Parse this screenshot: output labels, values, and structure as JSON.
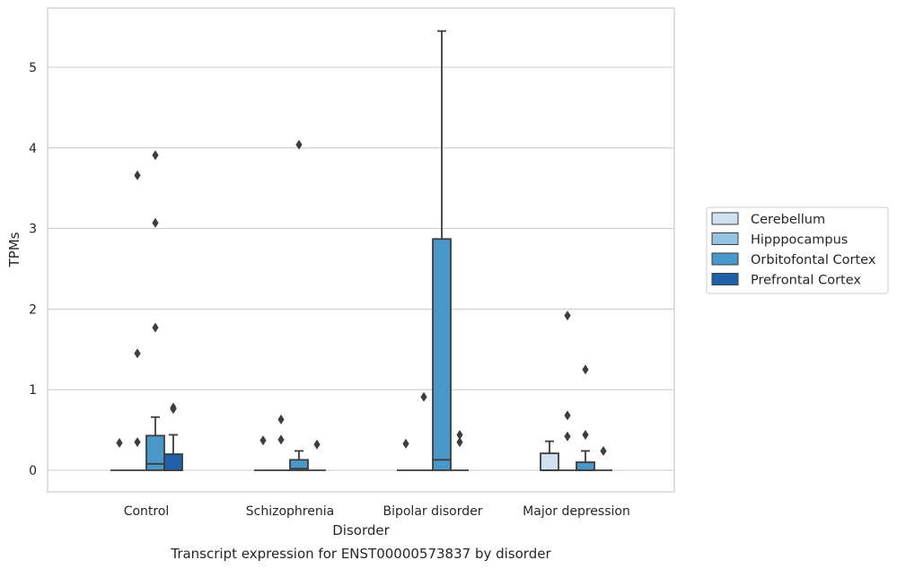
{
  "chart_data": {
    "type": "box",
    "title": "",
    "caption": "Transcript expression for ENST00000573837 by disorder",
    "xlabel": "Disorder",
    "ylabel": "TPMs",
    "categories": [
      "Control",
      "Schizophrenia",
      "Bipolar disorder",
      "Major depression"
    ],
    "ylim": [
      -0.27,
      5.73
    ],
    "yticks": [
      0,
      1,
      2,
      3,
      4,
      5
    ],
    "grid": "horizontal",
    "legend_position": "right",
    "series": [
      {
        "name": "Cerebellum",
        "color": "#d0e1f2",
        "boxes": [
          {
            "q1": 0,
            "median": 0,
            "q3": 0,
            "whisker_low": 0,
            "whisker_high": 0,
            "outliers": [
              0.34
            ]
          },
          {
            "q1": 0,
            "median": 0,
            "q3": 0,
            "whisker_low": 0,
            "whisker_high": 0,
            "outliers": [
              0.37
            ]
          },
          {
            "q1": 0,
            "median": 0,
            "q3": 0,
            "whisker_low": 0,
            "whisker_high": 0,
            "outliers": [
              0.33
            ]
          },
          {
            "q1": 0,
            "median": 0,
            "q3": 0.21,
            "whisker_low": 0,
            "whisker_high": 0.36,
            "outliers": []
          }
        ]
      },
      {
        "name": "Hipppocampus",
        "color": "#94c4df",
        "boxes": [
          {
            "q1": 0,
            "median": 0,
            "q3": 0,
            "whisker_low": 0,
            "whisker_high": 0,
            "outliers": [
              0.35,
              1.45,
              3.66
            ]
          },
          {
            "q1": 0,
            "median": 0,
            "q3": 0,
            "whisker_low": 0,
            "whisker_high": 0,
            "outliers": [
              0.38,
              0.63
            ]
          },
          {
            "q1": 0,
            "median": 0,
            "q3": 0,
            "whisker_low": 0,
            "whisker_high": 0,
            "outliers": [
              0.91
            ]
          },
          {
            "q1": 0,
            "median": 0,
            "q3": 0,
            "whisker_low": 0,
            "whisker_high": 0,
            "outliers": [
              0.42,
              0.68,
              1.92
            ]
          }
        ]
      },
      {
        "name": "Orbitofontal Cortex",
        "color": "#4a98c9",
        "boxes": [
          {
            "q1": 0,
            "median": 0.08,
            "q3": 0.43,
            "whisker_low": 0,
            "whisker_high": 0.66,
            "outliers": [
              1.77,
              3.07,
              3.91
            ]
          },
          {
            "q1": 0,
            "median": 0.02,
            "q3": 0.13,
            "whisker_low": 0,
            "whisker_high": 0.24,
            "outliers": [
              4.04
            ]
          },
          {
            "q1": 0,
            "median": 0.13,
            "q3": 2.87,
            "whisker_low": 0,
            "whisker_high": 5.45,
            "outliers": []
          },
          {
            "q1": 0,
            "median": 0,
            "q3": 0.1,
            "whisker_low": 0,
            "whisker_high": 0.24,
            "outliers": [
              0.44,
              1.25
            ]
          }
        ]
      },
      {
        "name": "Prefrontal Cortex",
        "color": "#2060a8",
        "boxes": [
          {
            "q1": 0,
            "median": 0,
            "q3": 0.2,
            "whisker_low": 0,
            "whisker_high": 0.44,
            "outliers": [
              0.76,
              0.78
            ]
          },
          {
            "q1": 0,
            "median": 0,
            "q3": 0,
            "whisker_low": 0,
            "whisker_high": 0,
            "outliers": [
              0.32
            ]
          },
          {
            "q1": 0,
            "median": 0,
            "q3": 0,
            "whisker_low": 0,
            "whisker_high": 0,
            "outliers": [
              0.35,
              0.44
            ]
          },
          {
            "q1": 0,
            "median": 0,
            "q3": 0,
            "whisker_low": 0,
            "whisker_high": 0,
            "outliers": [
              0.24
            ]
          }
        ]
      }
    ]
  }
}
